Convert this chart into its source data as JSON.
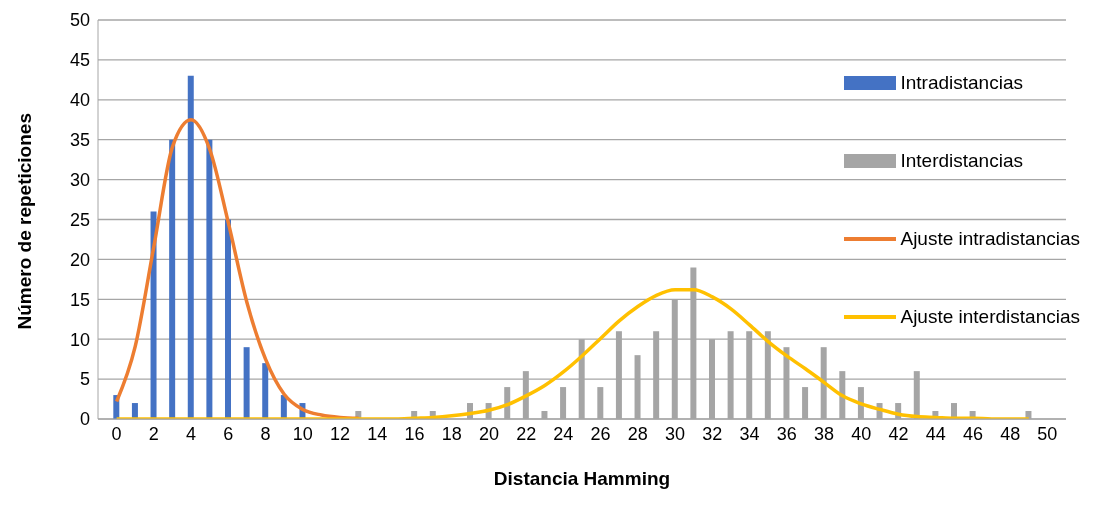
{
  "chart_data": {
    "type": "bar",
    "xlabel": "Distancia Hamming",
    "ylabel": "Número de repeticiones",
    "xlim": [
      -1,
      51
    ],
    "xticks": [
      0,
      2,
      4,
      6,
      8,
      10,
      12,
      14,
      16,
      18,
      20,
      22,
      24,
      26,
      28,
      30,
      32,
      34,
      36,
      38,
      40,
      42,
      44,
      46,
      48,
      50
    ],
    "ylim": [
      0,
      50
    ],
    "yticks": [
      0,
      5,
      10,
      15,
      20,
      25,
      30,
      35,
      40,
      45,
      50
    ],
    "grid": "y",
    "legend": "top right",
    "series": [
      {
        "name": "Intradistancias",
        "color": "#4472c4",
        "x": [
          0,
          1,
          2,
          3,
          4,
          5,
          6,
          7,
          8,
          9,
          10
        ],
        "values": [
          3,
          2,
          26,
          35,
          43,
          35,
          25,
          9,
          7,
          3,
          2
        ]
      },
      {
        "name": "Interdistancias",
        "color": "#a5a5a5",
        "x": [
          13,
          16,
          17,
          19,
          20,
          21,
          22,
          23,
          24,
          25,
          26,
          27,
          28,
          29,
          30,
          31,
          32,
          33,
          34,
          35,
          36,
          37,
          38,
          39,
          40,
          41,
          42,
          43,
          44,
          45,
          46,
          49
        ],
        "values": [
          1,
          1,
          1,
          2,
          2,
          4,
          6,
          1,
          4,
          10,
          4,
          11,
          8,
          11,
          15,
          19,
          10,
          11,
          11,
          11,
          9,
          4,
          9,
          6,
          4,
          2,
          2,
          6,
          1,
          2,
          1,
          1
        ]
      },
      {
        "name": "Ajuste intradistancias",
        "type": "line",
        "color": "#ed7d31",
        "x": [
          0,
          1,
          2,
          3,
          4,
          5,
          6,
          7,
          8,
          9,
          10,
          11,
          12,
          13
        ],
        "values": [
          2.2,
          9.1,
          21.6,
          34.1,
          37.5,
          33.8,
          24.6,
          14.6,
          7.5,
          3.1,
          1.2,
          0.5,
          0.2,
          0.1
        ]
      },
      {
        "name": "Ajuste interdistancias",
        "type": "line",
        "color": "#ffc000",
        "x": [
          0,
          2,
          4,
          6,
          8,
          10,
          12,
          14,
          15,
          16,
          17,
          18,
          19,
          20,
          21,
          22,
          23,
          24,
          25,
          26,
          27,
          28,
          29,
          30,
          31,
          32,
          33,
          34,
          35,
          36,
          37,
          38,
          39,
          40,
          41,
          42,
          43,
          44,
          45,
          46,
          47,
          48,
          49
        ],
        "values": [
          0,
          0,
          0,
          0,
          0,
          0,
          0,
          0,
          0,
          0.1,
          0.2,
          0.4,
          0.7,
          1.1,
          1.8,
          2.9,
          4.2,
          5.9,
          7.9,
          10.1,
          12.3,
          14.1,
          15.5,
          16.2,
          16.2,
          15.3,
          13.8,
          11.8,
          9.7,
          7.9,
          6.3,
          4.6,
          2.9,
          1.9,
          1.2,
          0.6,
          0.3,
          0.2,
          0.1,
          0.1,
          0,
          0,
          0
        ]
      }
    ]
  }
}
